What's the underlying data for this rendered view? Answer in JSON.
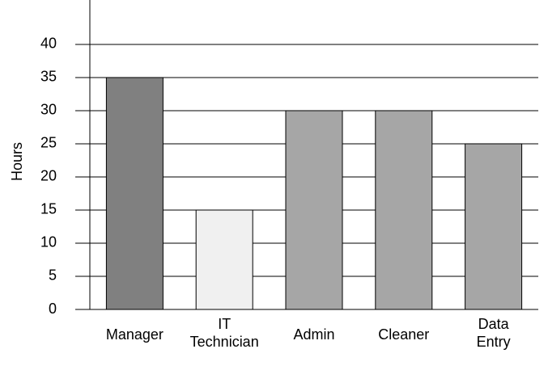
{
  "chart_data": {
    "type": "bar",
    "y_label": "Hours",
    "categories": [
      "Manager",
      "IT\nTechnician",
      "Admin",
      "Cleaner",
      "Data\nEntry"
    ],
    "values": [
      35,
      15,
      30,
      30,
      25
    ],
    "colors": [
      "#808080",
      "#f0f0f0",
      "#a6a6a6",
      "#a6a6a6",
      "#a6a6a6"
    ],
    "ylim": [
      0,
      46.7
    ],
    "yticks": [
      0,
      5,
      10,
      15,
      20,
      25,
      30,
      35,
      40
    ],
    "grid": true
  }
}
